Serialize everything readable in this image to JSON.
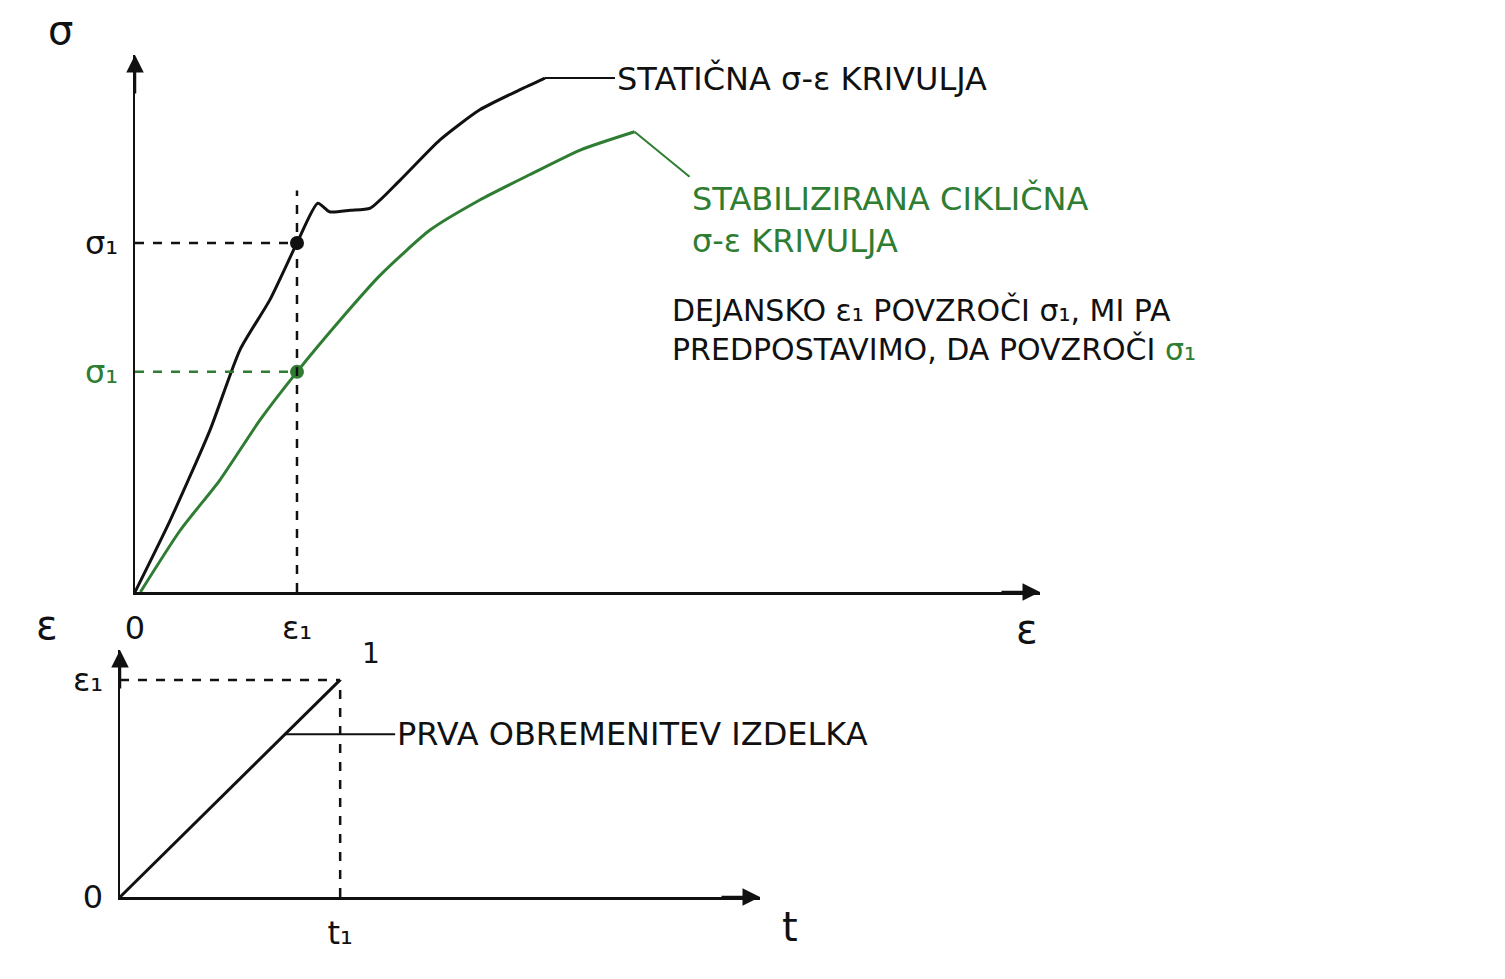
{
  "chart_data": [
    {
      "type": "line",
      "x_label": "ε",
      "y_label": "σ",
      "xlim": [
        0,
        100
      ],
      "ylim": [
        0,
        100
      ],
      "xticks": [
        0,
        {
          "value": 17.9,
          "label": "ε₁"
        }
      ],
      "yticks": [
        {
          "value": 65,
          "label": "σ₁"
        },
        {
          "value": 41,
          "label": "σ₁",
          "color": "#2e7d32"
        }
      ],
      "grid": false,
      "series": [
        {
          "name": "STATIČNA σ-ε KRIVULJA",
          "color": "#111111",
          "x": [
            0,
            3.9,
            8.3,
            11.6,
            14.9,
            17.9,
            20.2,
            21.5,
            23.8,
            26,
            29.3,
            33.7,
            38.1,
            42.5,
            45.3
          ],
          "values": [
            0,
            13.4,
            30.2,
            45.1,
            54.4,
            65,
            72.4,
            70.8,
            71.1,
            71.5,
            76.7,
            84.2,
            89.8,
            93.5,
            95.7
          ]
        },
        {
          "name": "STABILIZIRANA CIKLIČNA σ-ε KRIVULJA",
          "color": "#2e7d32",
          "x": [
            0.6,
            5,
            9.4,
            13.8,
            17.9,
            22.7,
            27.1,
            32.6,
            38.1,
            43.6,
            49.2,
            55.2
          ],
          "values": [
            0,
            11.5,
            20.9,
            32,
            41,
            50.7,
            59,
            67.4,
            73,
            77.7,
            82.3,
            85.7
          ]
        }
      ],
      "annotations": [
        "DEJANSKO ε₁ POVZROČI σ₁, MI PA PREDPOSTAVIMO, DA POVZROČI σ₁"
      ]
    },
    {
      "type": "line",
      "x_label": "t",
      "y_label": "ε",
      "xlim": [
        0,
        100
      ],
      "ylim": [
        0,
        100
      ],
      "xticks": [
        {
          "value": 34.4,
          "label": "t₁"
        }
      ],
      "yticks": [
        0,
        {
          "value": 87.9,
          "label": "ε₁"
        }
      ],
      "grid": false,
      "series": [
        {
          "name": "PRVA OBREMENITEV IZDELKA",
          "color": "#111111",
          "x": [
            0,
            34.4
          ],
          "values": [
            0,
            87.9
          ],
          "point_label": "1"
        }
      ]
    }
  ]
}
